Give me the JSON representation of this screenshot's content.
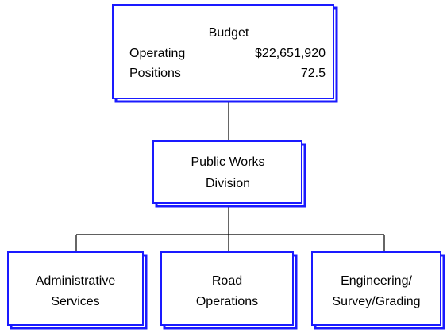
{
  "nodes": [
    {
      "label": "Budget",
      "rows": [
        {
          "name": "Operating",
          "value": "$22,651,920"
        },
        {
          "name": "Positions",
          "value": "72.5"
        }
      ]
    },
    {
      "label": [
        "Public Works",
        "Division"
      ]
    },
    {
      "label": [
        "Administrative",
        "Services"
      ]
    },
    {
      "label": [
        "Road",
        "Operations"
      ]
    },
    {
      "label": [
        "Engineering/",
        "Survey/Grading"
      ]
    }
  ]
}
